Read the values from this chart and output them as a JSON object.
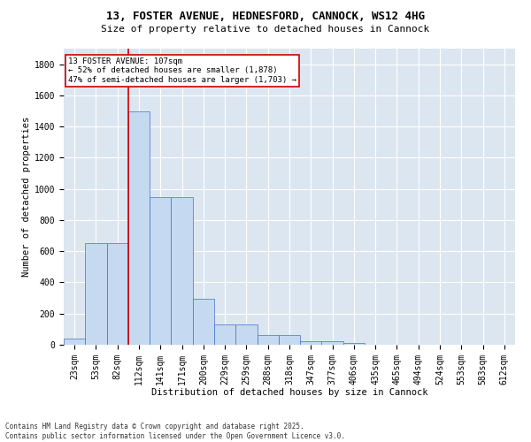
{
  "title": "13, FOSTER AVENUE, HEDNESFORD, CANNOCK, WS12 4HG",
  "subtitle": "Size of property relative to detached houses in Cannock",
  "xlabel": "Distribution of detached houses by size in Cannock",
  "ylabel": "Number of detached properties",
  "categories": [
    "23sqm",
    "53sqm",
    "82sqm",
    "112sqm",
    "141sqm",
    "171sqm",
    "200sqm",
    "229sqm",
    "259sqm",
    "288sqm",
    "318sqm",
    "347sqm",
    "377sqm",
    "406sqm",
    "435sqm",
    "465sqm",
    "494sqm",
    "524sqm",
    "553sqm",
    "583sqm",
    "612sqm"
  ],
  "values": [
    40,
    650,
    650,
    1500,
    950,
    950,
    295,
    130,
    130,
    60,
    60,
    25,
    25,
    10,
    0,
    0,
    0,
    0,
    0,
    0,
    0
  ],
  "bar_color": "#c5d9f1",
  "bar_edge_color": "#4472c4",
  "plot_bg_color": "#dce6f1",
  "fig_bg_color": "#ffffff",
  "grid_color": "#ffffff",
  "vline_color": "#cc0000",
  "vline_x_index": 2.5,
  "annotation_text": "13 FOSTER AVENUE: 107sqm\n← 52% of detached houses are smaller (1,878)\n47% of semi-detached houses are larger (1,703) →",
  "annotation_box_edgecolor": "#cc0000",
  "footer_text": "Contains HM Land Registry data © Crown copyright and database right 2025.\nContains public sector information licensed under the Open Government Licence v3.0.",
  "ylim": [
    0,
    1900
  ],
  "yticks": [
    0,
    200,
    400,
    600,
    800,
    1000,
    1200,
    1400,
    1600,
    1800
  ],
  "title_fontsize": 9,
  "subtitle_fontsize": 8,
  "axis_label_fontsize": 7.5,
  "tick_fontsize": 7,
  "annotation_fontsize": 6.5,
  "footer_fontsize": 5.5
}
